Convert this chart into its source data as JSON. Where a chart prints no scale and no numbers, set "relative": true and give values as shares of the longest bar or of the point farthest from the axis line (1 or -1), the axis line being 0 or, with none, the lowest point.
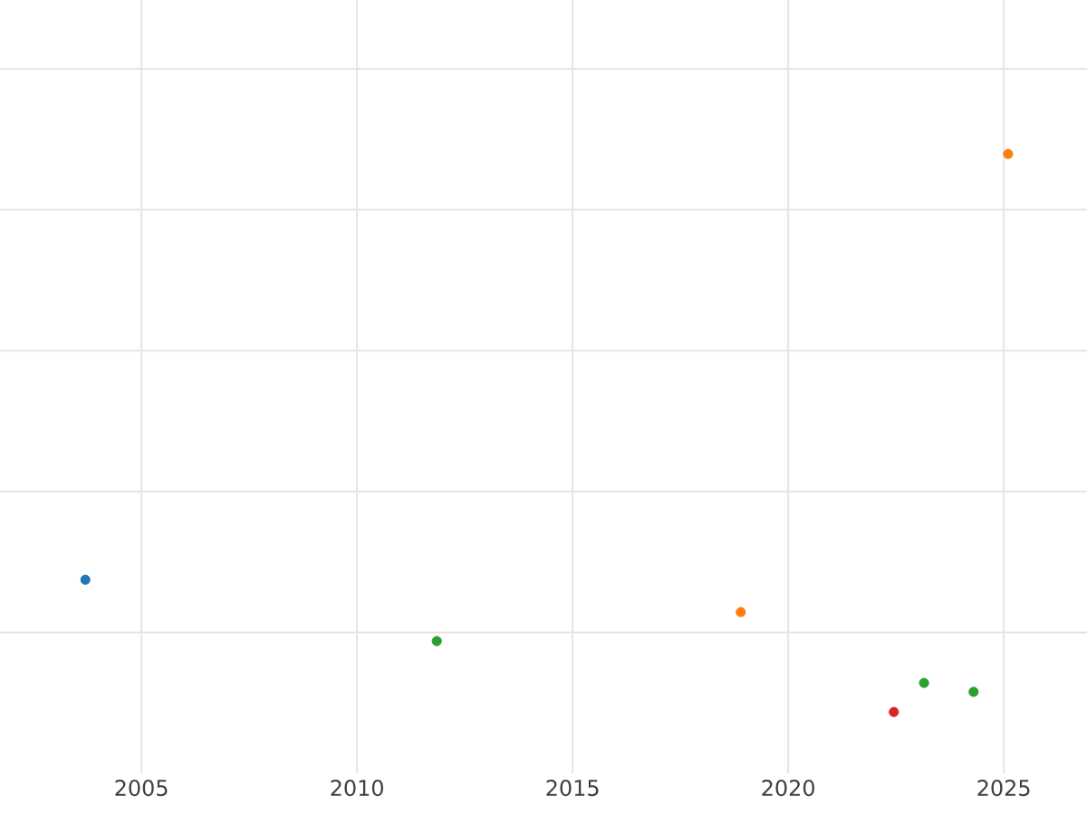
{
  "chart_data": {
    "type": "scatter",
    "relative": true,
    "xlim": [
      2001.72,
      2026.93
    ],
    "xticks": [
      2005,
      2010,
      2015,
      2020,
      2025
    ],
    "grid": true,
    "tick_labels": "x",
    "series": [
      {
        "color": "#1f77b4",
        "x": [
          2003.7
        ],
        "values": [
          0.237
        ]
      },
      {
        "color": "#2ca02c",
        "x": [
          2011.85,
          2023.15,
          2024.3
        ],
        "values": [
          0.127,
          0.052,
          0.036
        ]
      },
      {
        "color": "#ff7f0e",
        "x": [
          2018.9,
          2025.1
        ],
        "values": [
          0.179,
          1
        ]
      },
      {
        "color": "#d62728",
        "x": [
          2022.45
        ],
        "values": [
          0
        ]
      }
    ]
  }
}
